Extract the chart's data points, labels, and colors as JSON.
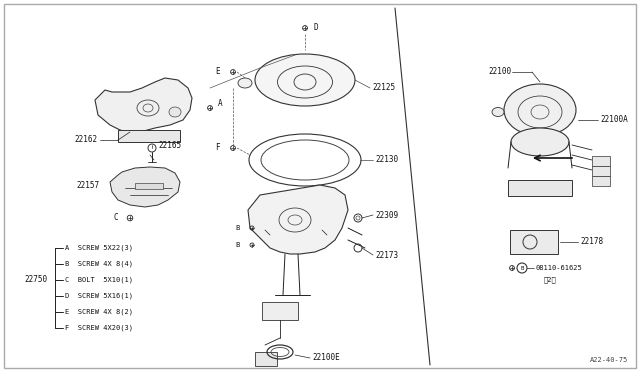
{
  "background_color": "#ffffff",
  "diagram_code": "A22-40-75",
  "hardware_items": [
    {
      "letter": "A",
      "text": "SCREW 5X22(3)"
    },
    {
      "letter": "B",
      "text": "SCREW 4X 8(4)"
    },
    {
      "letter": "C",
      "text": "BOLT  5X10(1)"
    },
    {
      "letter": "D",
      "text": "SCREW 5X16(1)"
    },
    {
      "letter": "E",
      "text": "SCREW 4X 8(2)"
    },
    {
      "letter": "F",
      "text": "SCREW 4X20(3)"
    }
  ],
  "fig_w": 6.4,
  "fig_h": 3.72,
  "dpi": 100
}
